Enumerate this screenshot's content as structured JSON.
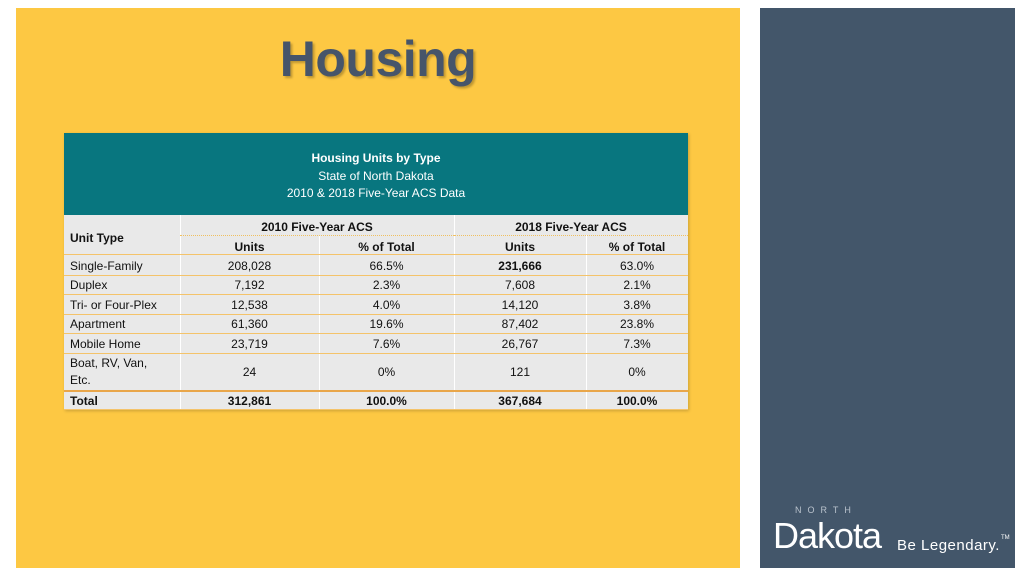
{
  "slide": {
    "title": "Housing"
  },
  "table": {
    "header": {
      "title": "Housing Units by Type",
      "subtitle": "State of North Dakota",
      "source": "2010 & 2018 Five-Year ACS Data"
    },
    "column_groups": [
      "2010 Five-Year ACS",
      "2018 Five-Year ACS"
    ],
    "row_label_header": "Unit Type",
    "columns": [
      "Units",
      "% of Total",
      "Units",
      "% of Total"
    ],
    "rows": [
      {
        "label": "Single-Family",
        "v2010_units": "208,028",
        "v2010_pct": "66.5%",
        "v2018_units": "231,666",
        "v2018_pct": "63.0%"
      },
      {
        "label": "Duplex",
        "v2010_units": "7,192",
        "v2010_pct": "2.3%",
        "v2018_units": "7,608",
        "v2018_pct": "2.1%"
      },
      {
        "label": "Tri- or Four-Plex",
        "v2010_units": "12,538",
        "v2010_pct": "4.0%",
        "v2018_units": "14,120",
        "v2018_pct": "3.8%"
      },
      {
        "label": "Apartment",
        "v2010_units": "61,360",
        "v2010_pct": "19.6%",
        "v2018_units": "87,402",
        "v2018_pct": "23.8%"
      },
      {
        "label": "Mobile Home",
        "v2010_units": "23,719",
        "v2010_pct": "7.6%",
        "v2018_units": "26,767",
        "v2018_pct": "7.3%"
      },
      {
        "label_line1": "Boat, RV, Van,",
        "label_line2": "Etc.",
        "v2010_units": "24",
        "v2010_pct": "0%",
        "v2018_units": "121",
        "v2018_pct": "0%"
      }
    ],
    "total": {
      "label": "Total",
      "v2010_units": "312,861",
      "v2010_pct": "100.0%",
      "v2018_units": "367,684",
      "v2018_pct": "100.0%"
    }
  },
  "logo": {
    "north": "NORTH",
    "name": "Dakota",
    "tagline": "Be Legendary.",
    "tm": "TM"
  },
  "colors": {
    "slide_bg": "#fdc843",
    "side_panel": "#43566a",
    "table_header_bg": "#08767f",
    "title_text": "#46556a"
  }
}
